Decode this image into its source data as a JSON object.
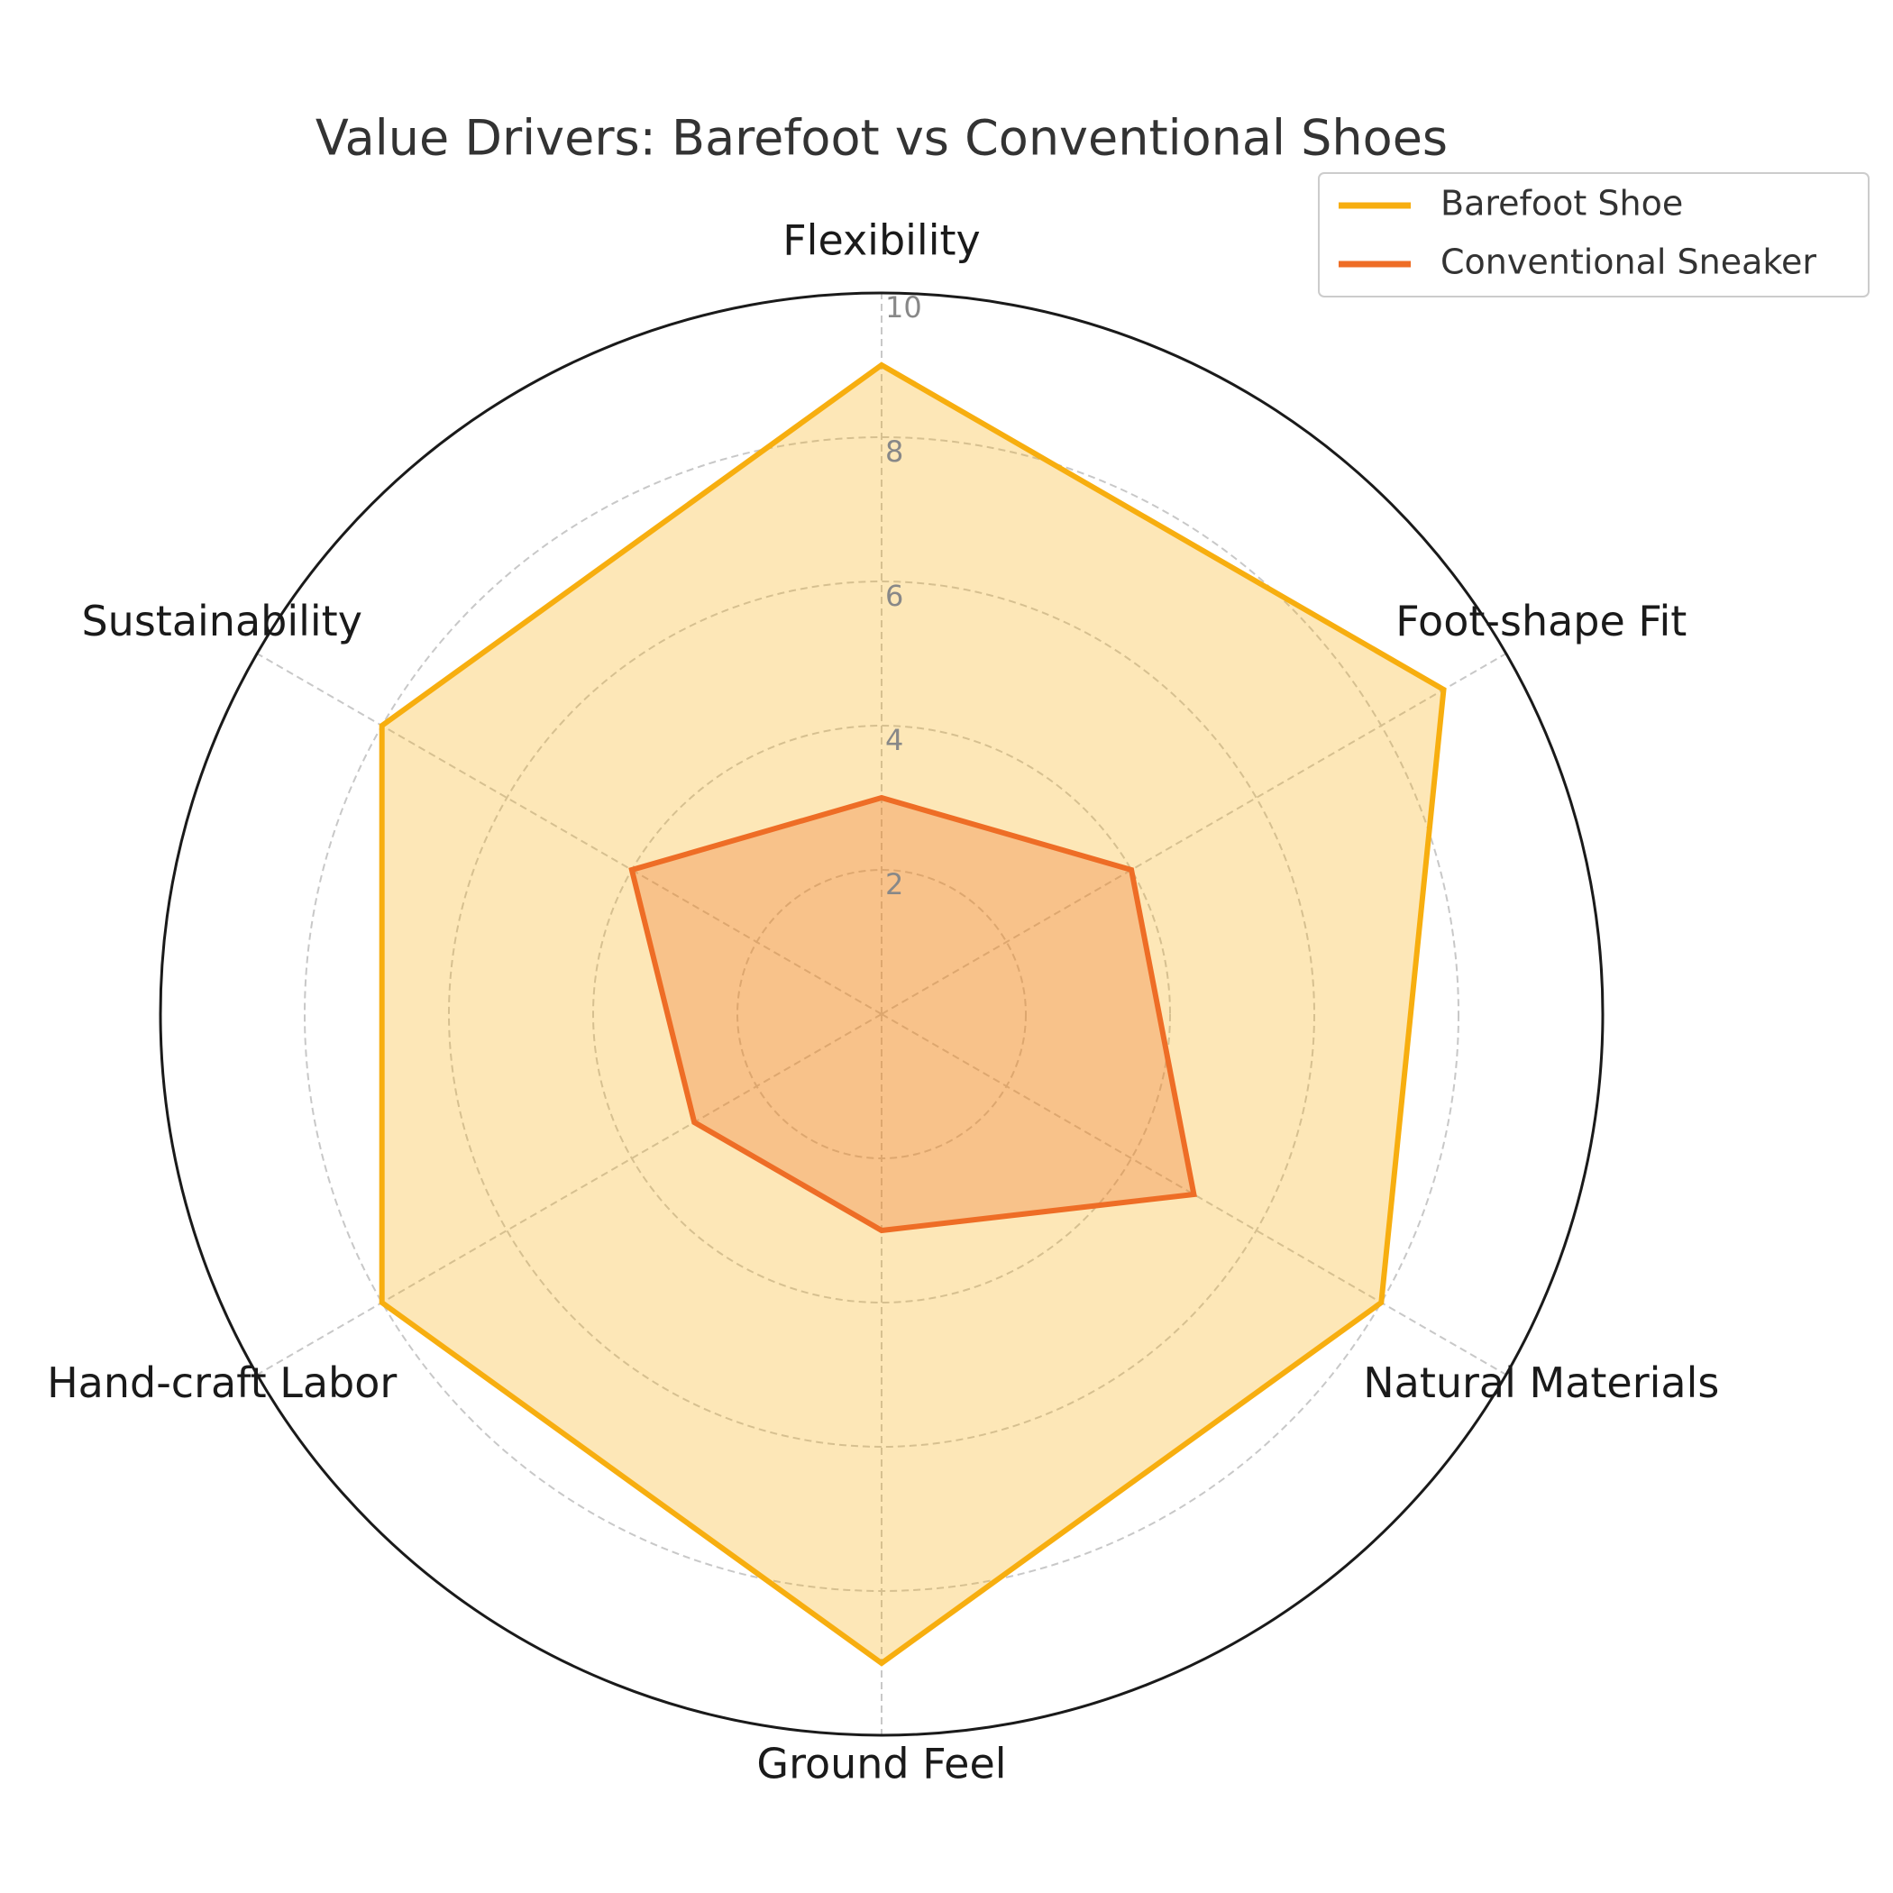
{
  "chart_data": {
    "type": "radar",
    "title": "Value Drivers: Barefoot vs Conventional Shoes",
    "categories": [
      "Flexibility",
      "Foot-shape Fit",
      "Natural Materials",
      "Ground Feel",
      "Hand-craft Labor",
      "Sustainability"
    ],
    "series": [
      {
        "name": "Barefoot Shoe",
        "color": "#f7ae0f",
        "values": [
          9,
          9,
          8,
          9,
          8,
          8
        ]
      },
      {
        "name": "Conventional Sneaker",
        "color": "#ee6d26",
        "values": [
          3,
          4,
          5,
          3,
          3,
          4
        ]
      }
    ],
    "ylim": [
      0,
      10
    ],
    "yticks": [
      2,
      4,
      6,
      8,
      10
    ],
    "grid": true,
    "legend": "upper right"
  }
}
